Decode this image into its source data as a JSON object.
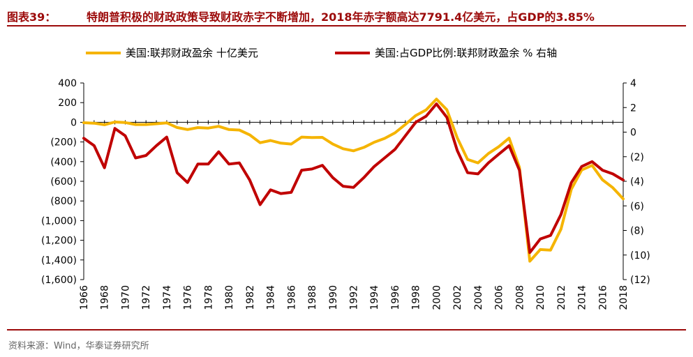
{
  "header": {
    "label": "图表39：",
    "title": "特朗普积极的财政政策导致财政赤字不断增加，2018年赤字额高达7791.4亿美元，占GDP的3.85%"
  },
  "footer": {
    "source": "资料来源：Wind，华泰证券研究所"
  },
  "chart_data": {
    "type": "line",
    "x": [
      1966,
      1967,
      1968,
      1969,
      1970,
      1971,
      1972,
      1973,
      1974,
      1975,
      1976,
      1977,
      1978,
      1979,
      1980,
      1981,
      1982,
      1983,
      1984,
      1985,
      1986,
      1987,
      1988,
      1989,
      1990,
      1991,
      1992,
      1993,
      1994,
      1995,
      1996,
      1997,
      1998,
      1999,
      2000,
      2001,
      2002,
      2003,
      2004,
      2005,
      2006,
      2007,
      2008,
      2009,
      2010,
      2011,
      2012,
      2013,
      2014,
      2015,
      2016,
      2017,
      2018
    ],
    "series": [
      {
        "name": "美国:联邦财政盈余 十亿美元",
        "axis": "left",
        "color": "#f5b400",
        "values": [
          -4,
          -9,
          -25,
          3,
          -3,
          -23,
          -23,
          -15,
          -6,
          -53,
          -74,
          -54,
          -59,
          -41,
          -74,
          -79,
          -128,
          -208,
          -185,
          -212,
          -221,
          -150,
          -155,
          -153,
          -221,
          -269,
          -290,
          -255,
          -203,
          -164,
          -107,
          -22,
          69,
          126,
          236,
          128,
          -158,
          -378,
          -413,
          -318,
          -248,
          -161,
          -459,
          -1413,
          -1294,
          -1300,
          -1087,
          -680,
          -485,
          -438,
          -585,
          -665,
          -779
        ]
      },
      {
        "name": "美国:占GDP比例:联邦财政盈余 % 右轴",
        "axis": "right",
        "color": "#c00000",
        "values": [
          -0.5,
          -1.1,
          -2.9,
          0.3,
          -0.3,
          -2.1,
          -1.9,
          -1.1,
          -0.4,
          -3.3,
          -4.1,
          -2.6,
          -2.6,
          -1.6,
          -2.6,
          -2.5,
          -3.9,
          -5.9,
          -4.7,
          -5.0,
          -4.9,
          -3.1,
          -3.0,
          -2.7,
          -3.7,
          -4.4,
          -4.5,
          -3.7,
          -2.8,
          -2.1,
          -1.4,
          -0.3,
          0.8,
          1.3,
          2.3,
          1.2,
          -1.5,
          -3.3,
          -3.4,
          -2.5,
          -1.8,
          -1.1,
          -3.1,
          -9.8,
          -8.7,
          -8.4,
          -6.7,
          -4.1,
          -2.8,
          -2.4,
          -3.1,
          -3.4,
          -3.9
        ]
      }
    ],
    "y_left": {
      "ylim": [
        -1600,
        400
      ],
      "ticks": [
        400,
        200,
        0,
        -200,
        -400,
        -600,
        -800,
        -1000,
        -1200,
        -1400,
        -1600
      ],
      "tick_labels": [
        "400",
        "200",
        "0",
        "(200)",
        "(400)",
        "(600)",
        "(800)",
        "(1,000)",
        "(1,200)",
        "(1,400)",
        "(1,600)"
      ]
    },
    "y_right": {
      "ylim": [
        -12,
        4
      ],
      "ticks": [
        4,
        2,
        0,
        -2,
        -4,
        -6,
        -8,
        -10,
        -12
      ],
      "tick_labels": [
        "4",
        "2",
        "0",
        "(2)",
        "(4)",
        "(6)",
        "(8)",
        "(10)",
        "(12)"
      ]
    },
    "x_tick_labels": [
      "1966",
      "1968",
      "1970",
      "1972",
      "1974",
      "1976",
      "1978",
      "1980",
      "1982",
      "1984",
      "1986",
      "1988",
      "1990",
      "1992",
      "1994",
      "1996",
      "1998",
      "2000",
      "2002",
      "2004",
      "2006",
      "2008",
      "2010",
      "2012",
      "2014",
      "2016",
      "2018"
    ],
    "grid": false,
    "legend_position": "top"
  }
}
